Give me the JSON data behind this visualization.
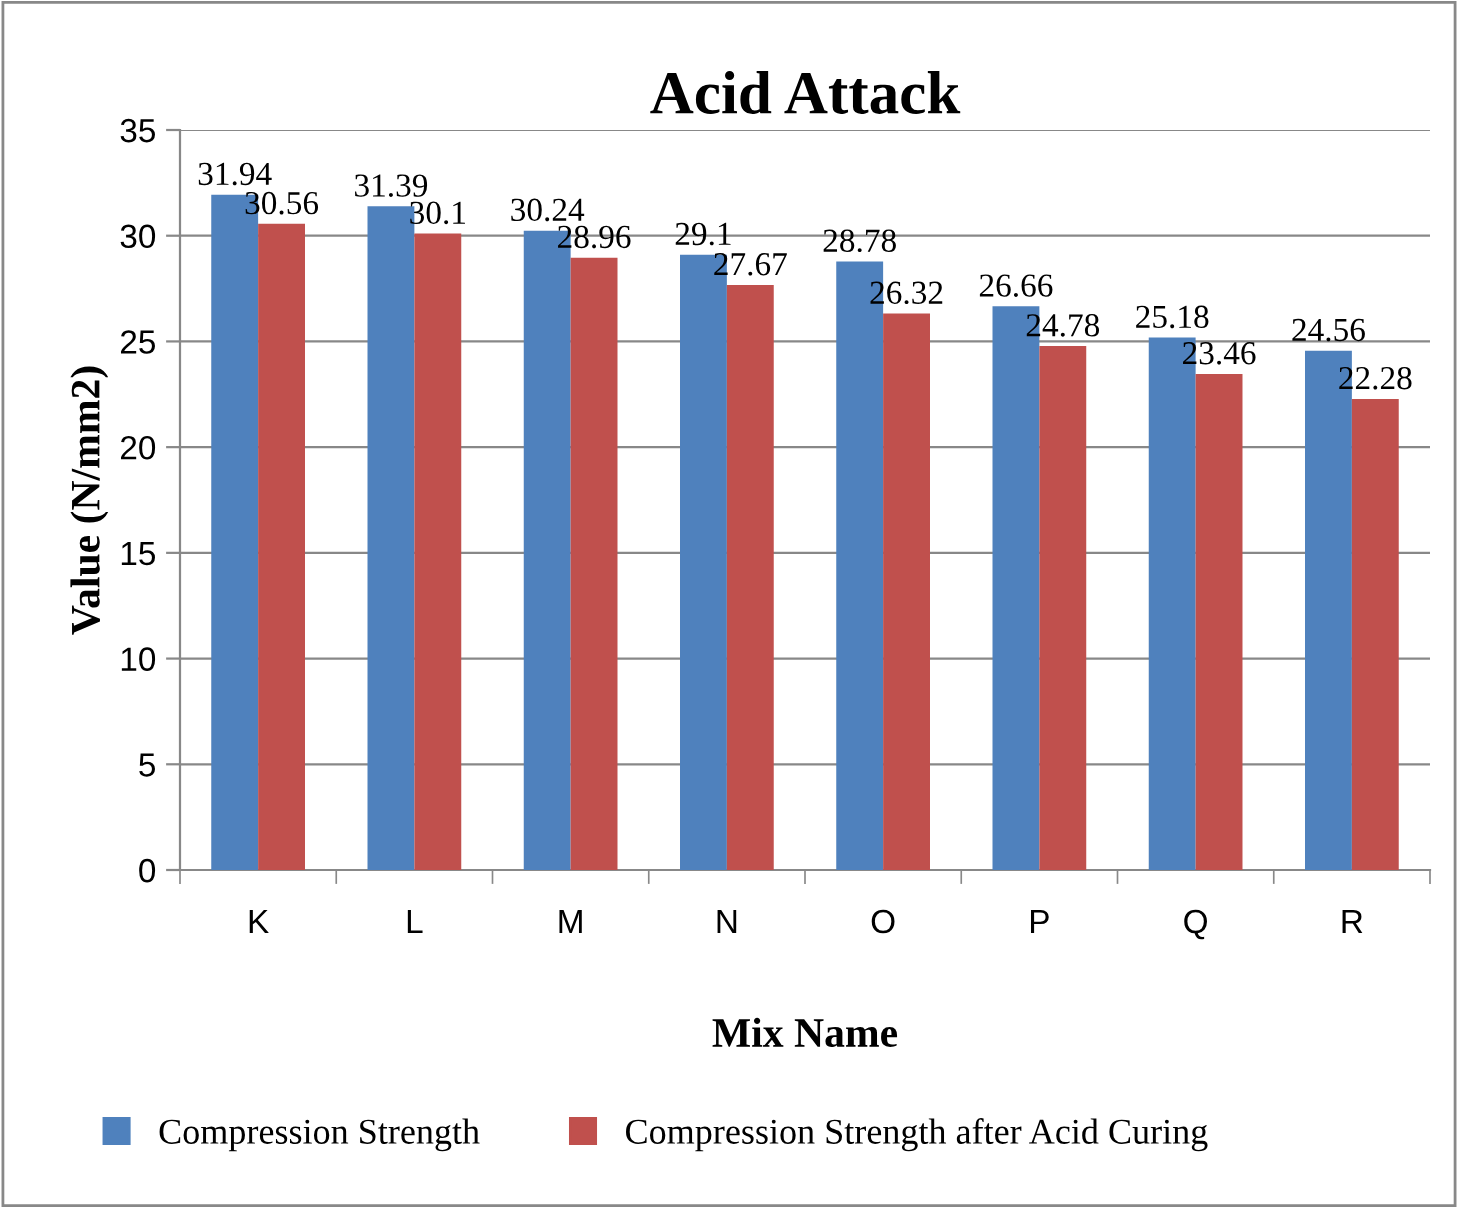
{
  "chart_data": {
    "type": "bar",
    "title": "Acid Attack",
    "xlabel": "Mix Name",
    "ylabel": "Value (N/mm2)",
    "categories": [
      "K",
      "L",
      "M",
      "N",
      "O",
      "P",
      "Q",
      "R"
    ],
    "series": [
      {
        "name": "Compression Strength",
        "color": "#4f81bd",
        "values": [
          31.94,
          31.39,
          30.24,
          29.1,
          28.78,
          26.66,
          25.18,
          24.56
        ]
      },
      {
        "name": "Compression Strength after Acid Curing",
        "color": "#c0504d",
        "values": [
          30.56,
          30.1,
          28.96,
          27.67,
          26.32,
          24.78,
          23.46,
          22.28
        ]
      }
    ],
    "ylim": [
      0,
      35
    ],
    "yticks": [
      0,
      5,
      10,
      15,
      20,
      25,
      30,
      35
    ],
    "grid": "y",
    "legend": "bottom",
    "data_labels": true
  }
}
